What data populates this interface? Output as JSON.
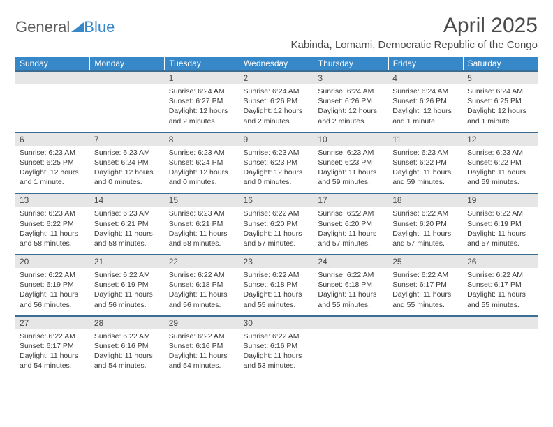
{
  "logo": {
    "text1": "General",
    "text2": "Blue"
  },
  "title": "April 2025",
  "location": "Kabinda, Lomami, Democratic Republic of the Congo",
  "colors": {
    "header_bg": "#3788c8",
    "header_text": "#ffffff",
    "border": "#3b6d92",
    "daynum_bg": "#e6e6e6",
    "text": "#3a3a3a",
    "title_color": "#4a4a4a"
  },
  "fonts": {
    "title_size": 30,
    "location_size": 15,
    "dayhead_size": 12,
    "body_size": 10.5
  },
  "weekdays": [
    "Sunday",
    "Monday",
    "Tuesday",
    "Wednesday",
    "Thursday",
    "Friday",
    "Saturday"
  ],
  "weeks": [
    [
      {
        "day": "",
        "sunrise": "",
        "sunset": "",
        "daylight": ""
      },
      {
        "day": "",
        "sunrise": "",
        "sunset": "",
        "daylight": ""
      },
      {
        "day": "1",
        "sunrise": "Sunrise: 6:24 AM",
        "sunset": "Sunset: 6:27 PM",
        "daylight": "Daylight: 12 hours and 2 minutes."
      },
      {
        "day": "2",
        "sunrise": "Sunrise: 6:24 AM",
        "sunset": "Sunset: 6:26 PM",
        "daylight": "Daylight: 12 hours and 2 minutes."
      },
      {
        "day": "3",
        "sunrise": "Sunrise: 6:24 AM",
        "sunset": "Sunset: 6:26 PM",
        "daylight": "Daylight: 12 hours and 2 minutes."
      },
      {
        "day": "4",
        "sunrise": "Sunrise: 6:24 AM",
        "sunset": "Sunset: 6:26 PM",
        "daylight": "Daylight: 12 hours and 1 minute."
      },
      {
        "day": "5",
        "sunrise": "Sunrise: 6:24 AM",
        "sunset": "Sunset: 6:25 PM",
        "daylight": "Daylight: 12 hours and 1 minute."
      }
    ],
    [
      {
        "day": "6",
        "sunrise": "Sunrise: 6:23 AM",
        "sunset": "Sunset: 6:25 PM",
        "daylight": "Daylight: 12 hours and 1 minute."
      },
      {
        "day": "7",
        "sunrise": "Sunrise: 6:23 AM",
        "sunset": "Sunset: 6:24 PM",
        "daylight": "Daylight: 12 hours and 0 minutes."
      },
      {
        "day": "8",
        "sunrise": "Sunrise: 6:23 AM",
        "sunset": "Sunset: 6:24 PM",
        "daylight": "Daylight: 12 hours and 0 minutes."
      },
      {
        "day": "9",
        "sunrise": "Sunrise: 6:23 AM",
        "sunset": "Sunset: 6:23 PM",
        "daylight": "Daylight: 12 hours and 0 minutes."
      },
      {
        "day": "10",
        "sunrise": "Sunrise: 6:23 AM",
        "sunset": "Sunset: 6:23 PM",
        "daylight": "Daylight: 11 hours and 59 minutes."
      },
      {
        "day": "11",
        "sunrise": "Sunrise: 6:23 AM",
        "sunset": "Sunset: 6:22 PM",
        "daylight": "Daylight: 11 hours and 59 minutes."
      },
      {
        "day": "12",
        "sunrise": "Sunrise: 6:23 AM",
        "sunset": "Sunset: 6:22 PM",
        "daylight": "Daylight: 11 hours and 59 minutes."
      }
    ],
    [
      {
        "day": "13",
        "sunrise": "Sunrise: 6:23 AM",
        "sunset": "Sunset: 6:22 PM",
        "daylight": "Daylight: 11 hours and 58 minutes."
      },
      {
        "day": "14",
        "sunrise": "Sunrise: 6:23 AM",
        "sunset": "Sunset: 6:21 PM",
        "daylight": "Daylight: 11 hours and 58 minutes."
      },
      {
        "day": "15",
        "sunrise": "Sunrise: 6:23 AM",
        "sunset": "Sunset: 6:21 PM",
        "daylight": "Daylight: 11 hours and 58 minutes."
      },
      {
        "day": "16",
        "sunrise": "Sunrise: 6:22 AM",
        "sunset": "Sunset: 6:20 PM",
        "daylight": "Daylight: 11 hours and 57 minutes."
      },
      {
        "day": "17",
        "sunrise": "Sunrise: 6:22 AM",
        "sunset": "Sunset: 6:20 PM",
        "daylight": "Daylight: 11 hours and 57 minutes."
      },
      {
        "day": "18",
        "sunrise": "Sunrise: 6:22 AM",
        "sunset": "Sunset: 6:20 PM",
        "daylight": "Daylight: 11 hours and 57 minutes."
      },
      {
        "day": "19",
        "sunrise": "Sunrise: 6:22 AM",
        "sunset": "Sunset: 6:19 PM",
        "daylight": "Daylight: 11 hours and 57 minutes."
      }
    ],
    [
      {
        "day": "20",
        "sunrise": "Sunrise: 6:22 AM",
        "sunset": "Sunset: 6:19 PM",
        "daylight": "Daylight: 11 hours and 56 minutes."
      },
      {
        "day": "21",
        "sunrise": "Sunrise: 6:22 AM",
        "sunset": "Sunset: 6:19 PM",
        "daylight": "Daylight: 11 hours and 56 minutes."
      },
      {
        "day": "22",
        "sunrise": "Sunrise: 6:22 AM",
        "sunset": "Sunset: 6:18 PM",
        "daylight": "Daylight: 11 hours and 56 minutes."
      },
      {
        "day": "23",
        "sunrise": "Sunrise: 6:22 AM",
        "sunset": "Sunset: 6:18 PM",
        "daylight": "Daylight: 11 hours and 55 minutes."
      },
      {
        "day": "24",
        "sunrise": "Sunrise: 6:22 AM",
        "sunset": "Sunset: 6:18 PM",
        "daylight": "Daylight: 11 hours and 55 minutes."
      },
      {
        "day": "25",
        "sunrise": "Sunrise: 6:22 AM",
        "sunset": "Sunset: 6:17 PM",
        "daylight": "Daylight: 11 hours and 55 minutes."
      },
      {
        "day": "26",
        "sunrise": "Sunrise: 6:22 AM",
        "sunset": "Sunset: 6:17 PM",
        "daylight": "Daylight: 11 hours and 55 minutes."
      }
    ],
    [
      {
        "day": "27",
        "sunrise": "Sunrise: 6:22 AM",
        "sunset": "Sunset: 6:17 PM",
        "daylight": "Daylight: 11 hours and 54 minutes."
      },
      {
        "day": "28",
        "sunrise": "Sunrise: 6:22 AM",
        "sunset": "Sunset: 6:16 PM",
        "daylight": "Daylight: 11 hours and 54 minutes."
      },
      {
        "day": "29",
        "sunrise": "Sunrise: 6:22 AM",
        "sunset": "Sunset: 6:16 PM",
        "daylight": "Daylight: 11 hours and 54 minutes."
      },
      {
        "day": "30",
        "sunrise": "Sunrise: 6:22 AM",
        "sunset": "Sunset: 6:16 PM",
        "daylight": "Daylight: 11 hours and 53 minutes."
      },
      {
        "day": "",
        "sunrise": "",
        "sunset": "",
        "daylight": ""
      },
      {
        "day": "",
        "sunrise": "",
        "sunset": "",
        "daylight": ""
      },
      {
        "day": "",
        "sunrise": "",
        "sunset": "",
        "daylight": ""
      }
    ]
  ]
}
